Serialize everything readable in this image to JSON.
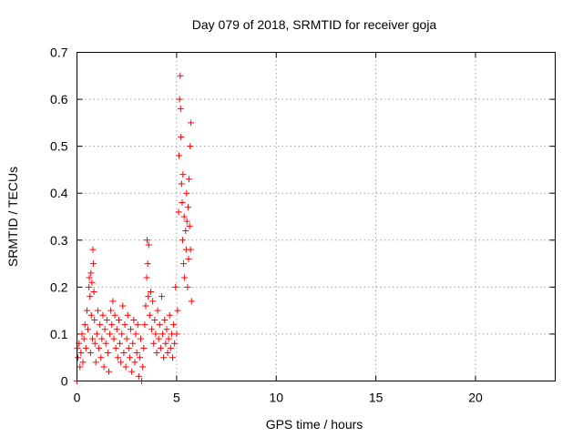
{
  "chart_data": {
    "type": "scatter",
    "title": "Day 079 of 2018, SRMTID for receiver goja",
    "xlabel": "GPS time / hours",
    "ylabel": "SRMTID / TECUs",
    "xlim": [
      0,
      24
    ],
    "ylim": [
      0,
      0.7
    ],
    "xticks": [
      0,
      5,
      10,
      15,
      20
    ],
    "xtick_labels": [
      "0",
      "5",
      "10",
      "15",
      "20"
    ],
    "yticks": [
      0,
      0.1,
      0.2,
      0.3,
      0.4,
      0.5,
      0.6,
      0.7
    ],
    "ytick_labels": [
      "0",
      "0.1",
      "0.2",
      "0.3",
      "0.4",
      "0.5",
      "0.6",
      "0.7"
    ],
    "grid": true,
    "marker": "+",
    "color": "#ff0000",
    "series": [
      {
        "name": "SRMTID",
        "points": [
          [
            0.0,
            0.0
          ],
          [
            0.02,
            0.07
          ],
          [
            0.05,
            0.05
          ],
          [
            0.1,
            0.08
          ],
          [
            0.15,
            0.03
          ],
          [
            0.2,
            0.06
          ],
          [
            0.25,
            0.1
          ],
          [
            0.3,
            0.04
          ],
          [
            0.35,
            0.09
          ],
          [
            0.4,
            0.12
          ],
          [
            0.45,
            0.07
          ],
          [
            0.5,
            0.15
          ],
          [
            0.55,
            0.11
          ],
          [
            0.6,
            0.2
          ],
          [
            0.62,
            0.22
          ],
          [
            0.65,
            0.18
          ],
          [
            0.68,
            0.06
          ],
          [
            0.7,
            0.23
          ],
          [
            0.72,
            0.14
          ],
          [
            0.75,
            0.21
          ],
          [
            0.78,
            0.09
          ],
          [
            0.8,
            0.28
          ],
          [
            0.82,
            0.25
          ],
          [
            0.85,
            0.19
          ],
          [
            0.88,
            0.13
          ],
          [
            0.9,
            0.08
          ],
          [
            0.95,
            0.04
          ],
          [
            1.0,
            0.1
          ],
          [
            1.05,
            0.15
          ],
          [
            1.1,
            0.07
          ],
          [
            1.15,
            0.12
          ],
          [
            1.2,
            0.05
          ],
          [
            1.25,
            0.09
          ],
          [
            1.3,
            0.14
          ],
          [
            1.35,
            0.03
          ],
          [
            1.4,
            0.11
          ],
          [
            1.45,
            0.08
          ],
          [
            1.5,
            0.13
          ],
          [
            1.55,
            0.06
          ],
          [
            1.6,
            0.02
          ],
          [
            1.65,
            0.1
          ],
          [
            1.7,
            0.15
          ],
          [
            1.75,
            0.12
          ],
          [
            1.8,
            0.17
          ],
          [
            1.85,
            0.09
          ],
          [
            1.9,
            0.14
          ],
          [
            1.95,
            0.07
          ],
          [
            2.0,
            0.11
          ],
          [
            2.05,
            0.05
          ],
          [
            2.1,
            0.13
          ],
          [
            2.15,
            0.08
          ],
          [
            2.2,
            0.04
          ],
          [
            2.25,
            0.1
          ],
          [
            2.3,
            0.16
          ],
          [
            2.35,
            0.06
          ],
          [
            2.4,
            0.12
          ],
          [
            2.45,
            0.03
          ],
          [
            2.5,
            0.09
          ],
          [
            2.55,
            0.14
          ],
          [
            2.6,
            0.07
          ],
          [
            2.65,
            0.05
          ],
          [
            2.7,
            0.11
          ],
          [
            2.75,
            0.02
          ],
          [
            2.8,
            0.08
          ],
          [
            2.85,
            0.13
          ],
          [
            2.9,
            0.04
          ],
          [
            2.95,
            0.1
          ],
          [
            3.0,
            0.06
          ],
          [
            3.05,
            0.12
          ],
          [
            3.1,
            0.01
          ],
          [
            3.15,
            0.05
          ],
          [
            3.2,
            0.09
          ],
          [
            3.25,
            0.0
          ],
          [
            3.3,
            0.03
          ],
          [
            3.35,
            0.07
          ],
          [
            3.4,
            0.12
          ],
          [
            3.45,
            0.16
          ],
          [
            3.5,
            0.22
          ],
          [
            3.52,
            0.3
          ],
          [
            3.55,
            0.25
          ],
          [
            3.58,
            0.18
          ],
          [
            3.6,
            0.29
          ],
          [
            3.65,
            0.14
          ],
          [
            3.7,
            0.19
          ],
          [
            3.75,
            0.11
          ],
          [
            3.8,
            0.17
          ],
          [
            3.85,
            0.08
          ],
          [
            3.9,
            0.13
          ],
          [
            3.95,
            0.1
          ],
          [
            4.0,
            0.06
          ],
          [
            4.05,
            0.15
          ],
          [
            4.1,
            0.09
          ],
          [
            4.15,
            0.12
          ],
          [
            4.2,
            0.07
          ],
          [
            4.25,
            0.18
          ],
          [
            4.3,
            0.1
          ],
          [
            4.35,
            0.05
          ],
          [
            4.4,
            0.13
          ],
          [
            4.45,
            0.08
          ],
          [
            4.5,
            0.11
          ],
          [
            4.55,
            0.06
          ],
          [
            4.6,
            0.09
          ],
          [
            4.65,
            0.14
          ],
          [
            4.7,
            0.07
          ],
          [
            4.75,
            0.1
          ],
          [
            4.8,
            0.05
          ],
          [
            4.85,
            0.12
          ],
          [
            4.9,
            0.08
          ],
          [
            4.95,
            0.2
          ],
          [
            5.0,
            0.1
          ],
          [
            5.05,
            0.15
          ],
          [
            5.1,
            0.36
          ],
          [
            5.12,
            0.48
          ],
          [
            5.15,
            0.6
          ],
          [
            5.18,
            0.65
          ],
          [
            5.2,
            0.58
          ],
          [
            5.22,
            0.52
          ],
          [
            5.25,
            0.42
          ],
          [
            5.28,
            0.38
          ],
          [
            5.3,
            0.3
          ],
          [
            5.32,
            0.44
          ],
          [
            5.35,
            0.25
          ],
          [
            5.38,
            0.35
          ],
          [
            5.4,
            0.22
          ],
          [
            5.45,
            0.32
          ],
          [
            5.48,
            0.28
          ],
          [
            5.5,
            0.4
          ],
          [
            5.52,
            0.34
          ],
          [
            5.55,
            0.2
          ],
          [
            5.58,
            0.37
          ],
          [
            5.6,
            0.26
          ],
          [
            5.62,
            0.43
          ],
          [
            5.65,
            0.33
          ],
          [
            5.68,
            0.5
          ],
          [
            5.7,
            0.28
          ],
          [
            5.72,
            0.55
          ],
          [
            5.75,
            0.17
          ]
        ]
      }
    ]
  }
}
